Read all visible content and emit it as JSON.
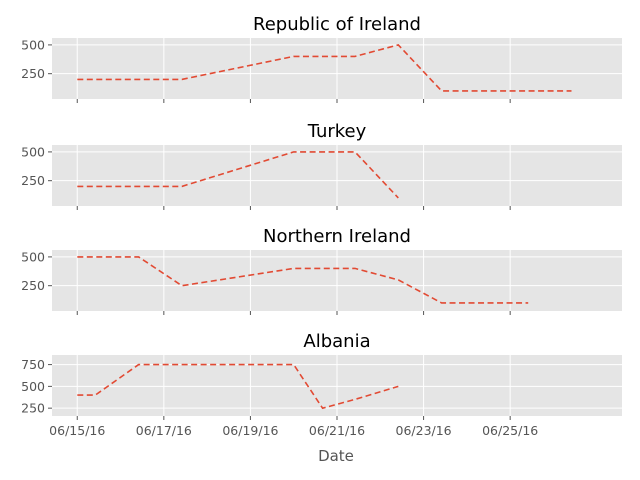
{
  "chart_data": {
    "type": "line",
    "xlabel": "Date",
    "xticks": [
      "06/15/16",
      "06/17/16",
      "06/19/16",
      "06/21/16",
      "06/23/16",
      "06/25/16"
    ],
    "xlim": [
      "06/14/16 10:00",
      "06/27/16 14:00"
    ],
    "grid": true,
    "line_style": "dashed",
    "line_color": "#e24a33",
    "background": "#e5e5e5",
    "panels": [
      {
        "title": "Republic of Ireland",
        "yticks": [
          250,
          500
        ],
        "ylim": [
          30,
          560
        ],
        "x": [
          "06/15/16 00:00",
          "06/17/16 10:00",
          "06/20/16 00:00",
          "06/21/16 10:00",
          "06/22/16 10:00",
          "06/23/16 10:00",
          "06/26/16 10:00"
        ],
        "values": [
          200,
          200,
          400,
          400,
          500,
          100,
          100
        ]
      },
      {
        "title": "Turkey",
        "yticks": [
          250,
          500
        ],
        "ylim": [
          30,
          560
        ],
        "x": [
          "06/15/16 00:00",
          "06/17/16 10:00",
          "06/20/16 00:00",
          "06/21/16 10:00",
          "06/22/16 10:00"
        ],
        "values": [
          200,
          200,
          500,
          500,
          100
        ]
      },
      {
        "title": "Northern Ireland",
        "yticks": [
          250,
          500
        ],
        "ylim": [
          30,
          560
        ],
        "x": [
          "06/15/16 00:00",
          "06/16/16 10:00",
          "06/17/16 10:00",
          "06/20/16 00:00",
          "06/21/16 10:00",
          "06/22/16 10:00",
          "06/23/16 10:00",
          "06/25/16 10:00"
        ],
        "values": [
          500,
          500,
          250,
          400,
          400,
          300,
          100,
          100
        ]
      },
      {
        "title": "Albania",
        "yticks": [
          250,
          500,
          750
        ],
        "ylim": [
          160,
          860
        ],
        "x": [
          "06/15/16 00:00",
          "06/15/16 10:00",
          "06/16/16 10:00",
          "06/20/16 00:00",
          "06/20/16 16:00",
          "06/21/16 10:00",
          "06/22/16 10:00"
        ],
        "values": [
          400,
          400,
          750,
          750,
          250,
          350,
          500
        ]
      }
    ]
  }
}
